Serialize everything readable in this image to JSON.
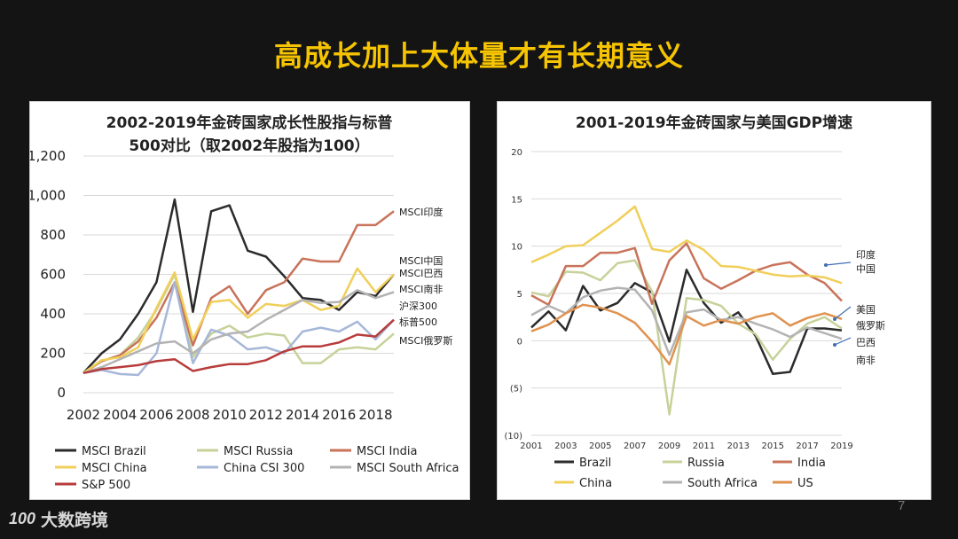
{
  "slide": {
    "title": "高成长加上大体量才有长期意义",
    "page_number": "7",
    "logo_mark": "100",
    "logo_text": "大数跨境"
  },
  "chart_data": [
    {
      "type": "line",
      "title_line1": "2002-2019年金砖国家成长性股指与标普",
      "title_line2": "500对比（取2002年股指为100）",
      "x": [
        2002,
        2003,
        2004,
        2005,
        2006,
        2007,
        2008,
        2009,
        2010,
        2011,
        2012,
        2013,
        2014,
        2015,
        2016,
        2017,
        2018,
        2019
      ],
      "xticks": [
        2002,
        2004,
        2006,
        2008,
        2010,
        2012,
        2014,
        2016,
        2018
      ],
      "ylim": [
        0,
        1200
      ],
      "yticks": [
        0,
        200,
        400,
        600,
        800,
        1000,
        1200
      ],
      "ytick_labels": [
        "0",
        "200",
        "400",
        "600",
        "800",
        "1,000",
        "1,200"
      ],
      "series": [
        {
          "name": "MSCI Brazil",
          "color": "#2b2b2b",
          "values": [
            100,
            200,
            270,
            400,
            560,
            980,
            410,
            920,
            950,
            720,
            690,
            590,
            480,
            470,
            420,
            510,
            490,
            600
          ]
        },
        {
          "name": "MSCI Russia",
          "color": "#c6d29a",
          "values": [
            100,
            160,
            190,
            280,
            420,
            600,
            180,
            300,
            340,
            280,
            300,
            290,
            150,
            150,
            220,
            230,
            220,
            300
          ]
        },
        {
          "name": "MSCI India",
          "color": "#c8735a",
          "values": [
            100,
            160,
            190,
            260,
            380,
            560,
            240,
            480,
            540,
            400,
            520,
            560,
            680,
            665,
            665,
            850,
            850,
            920
          ]
        },
        {
          "name": "MSCI China",
          "color": "#f0cf5a",
          "values": [
            100,
            165,
            180,
            230,
            430,
            610,
            270,
            460,
            470,
            380,
            450,
            440,
            470,
            420,
            440,
            630,
            510,
            600
          ]
        },
        {
          "name": "China CSI 300",
          "color": "#a6b7d8",
          "values": [
            100,
            115,
            95,
            90,
            200,
            560,
            150,
            320,
            290,
            220,
            230,
            200,
            310,
            330,
            310,
            360,
            270,
            370
          ]
        },
        {
          "name": "MSCI South Africa",
          "color": "#b3b3b3",
          "values": [
            100,
            130,
            170,
            210,
            250,
            260,
            200,
            270,
            300,
            310,
            370,
            420,
            470,
            455,
            460,
            520,
            480,
            510
          ]
        },
        {
          "name": "S&P 500",
          "color": "#b83c3c",
          "values": [
            100,
            120,
            130,
            140,
            160,
            170,
            110,
            130,
            145,
            145,
            165,
            210,
            235,
            235,
            255,
            295,
            285,
            370
          ]
        }
      ],
      "annotations": [
        "MSCI印度",
        "MSCI中国",
        "MSCI巴西",
        "MSCI南非",
        "沪深300",
        "标普500",
        "MSCI俄罗斯"
      ]
    },
    {
      "type": "line",
      "title": "2001-2019年金砖国家与美国GDP增速",
      "x": [
        2001,
        2002,
        2003,
        2004,
        2005,
        2006,
        2007,
        2008,
        2009,
        2010,
        2011,
        2012,
        2013,
        2014,
        2015,
        2016,
        2017,
        2018,
        2019
      ],
      "xticks": [
        2001,
        2003,
        2005,
        2007,
        2009,
        2011,
        2013,
        2015,
        2017,
        2019
      ],
      "ylim": [
        -10,
        20
      ],
      "yticks": [
        -10,
        -5,
        0,
        5,
        10,
        15,
        20
      ],
      "ytick_labels": [
        "(10)",
        "(5)",
        "0",
        "5",
        "10",
        "15",
        "20"
      ],
      "series": [
        {
          "name": "Brazil",
          "color": "#2b2b2b",
          "values": [
            1.4,
            3.1,
            1.1,
            5.8,
            3.2,
            4.0,
            6.1,
            5.1,
            -0.1,
            7.5,
            4.0,
            1.9,
            3.0,
            0.5,
            -3.5,
            -3.3,
            1.3,
            1.3,
            1.1
          ]
        },
        {
          "name": "Russia",
          "color": "#c6d29a",
          "values": [
            5.1,
            4.7,
            7.3,
            7.2,
            6.4,
            8.2,
            8.5,
            5.2,
            -7.8,
            4.5,
            4.3,
            3.7,
            1.8,
            0.7,
            -2.0,
            0.2,
            1.8,
            2.5,
            1.3
          ]
        },
        {
          "name": "India",
          "color": "#c8735a",
          "values": [
            4.8,
            3.8,
            7.9,
            7.9,
            9.3,
            9.3,
            9.8,
            3.9,
            8.5,
            10.3,
            6.6,
            5.5,
            6.4,
            7.4,
            8.0,
            8.3,
            7.0,
            6.1,
            4.2
          ]
        },
        {
          "name": "China",
          "color": "#f0cf5a",
          "values": [
            8.3,
            9.1,
            10.0,
            10.1,
            11.4,
            12.7,
            14.2,
            9.7,
            9.4,
            10.6,
            9.6,
            7.9,
            7.8,
            7.4,
            7.0,
            6.8,
            6.9,
            6.7,
            6.1
          ]
        },
        {
          "name": "South Africa",
          "color": "#b3b3b3",
          "values": [
            2.7,
            3.7,
            2.9,
            4.6,
            5.3,
            5.6,
            5.4,
            3.2,
            -1.5,
            3.0,
            3.3,
            2.2,
            2.5,
            1.8,
            1.2,
            0.4,
            1.4,
            0.8,
            0.2
          ]
        },
        {
          "name": "US",
          "color": "#e0924f",
          "values": [
            1.0,
            1.7,
            2.9,
            3.8,
            3.5,
            2.9,
            1.9,
            -0.1,
            -2.5,
            2.6,
            1.6,
            2.2,
            1.8,
            2.5,
            2.9,
            1.6,
            2.4,
            2.9,
            2.3
          ]
        }
      ],
      "annotations": [
        "印度",
        "中国",
        "美国",
        "俄罗斯",
        "巴西",
        "南非"
      ]
    }
  ]
}
